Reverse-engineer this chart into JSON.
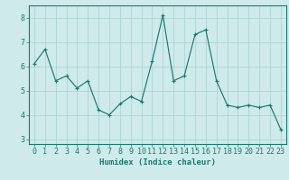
{
  "x": [
    0,
    1,
    2,
    3,
    4,
    5,
    6,
    7,
    8,
    9,
    10,
    11,
    12,
    13,
    14,
    15,
    16,
    17,
    18,
    19,
    20,
    21,
    22,
    23
  ],
  "y": [
    6.1,
    6.7,
    5.4,
    5.6,
    5.1,
    5.4,
    4.2,
    4.0,
    4.45,
    4.75,
    4.55,
    6.2,
    8.1,
    5.4,
    5.6,
    7.3,
    7.5,
    5.4,
    4.4,
    4.3,
    4.4,
    4.3,
    4.4,
    3.4
  ],
  "line_color": "#1a7a6e",
  "marker": "+",
  "bg_color": "#ceeaea",
  "grid_color": "#aed4d4",
  "xlabel": "Humidex (Indice chaleur)",
  "xlim": [
    -0.5,
    23.5
  ],
  "ylim": [
    2.8,
    8.5
  ],
  "yticks": [
    3,
    4,
    5,
    6,
    7,
    8
  ],
  "xticks": [
    0,
    1,
    2,
    3,
    4,
    5,
    6,
    7,
    8,
    9,
    10,
    11,
    12,
    13,
    14,
    15,
    16,
    17,
    18,
    19,
    20,
    21,
    22,
    23
  ],
  "label_fontsize": 6.5,
  "tick_fontsize": 6.0
}
